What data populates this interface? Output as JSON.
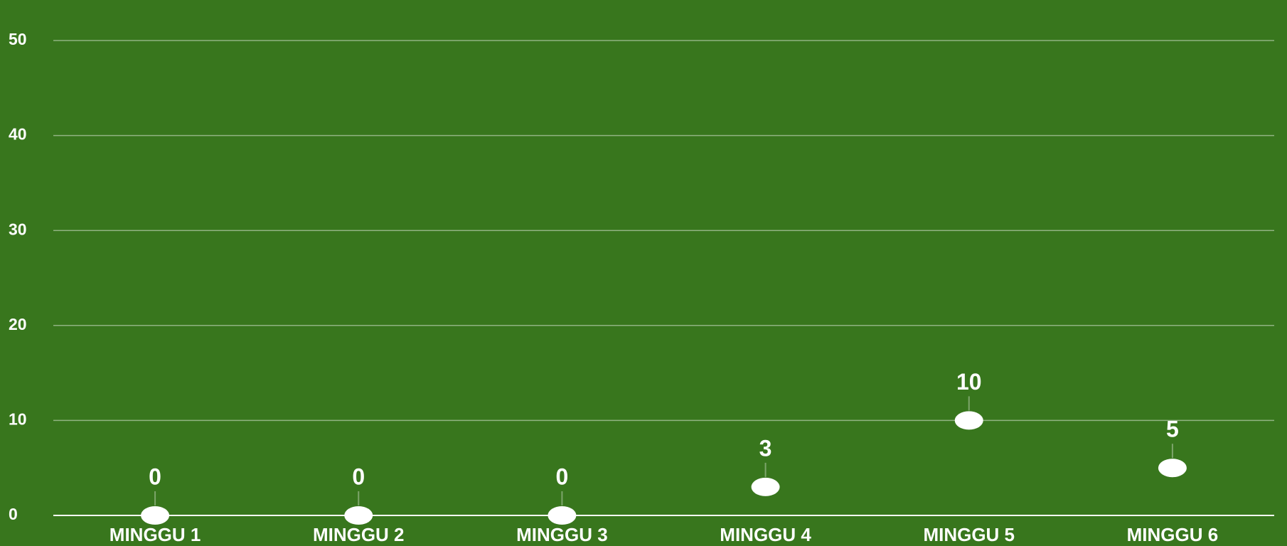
{
  "chart_data": {
    "type": "scatter",
    "categories": [
      "MINGGU 1",
      "MINGGU 2",
      "MINGGU 3",
      "MINGGU 4",
      "MINGGU 5",
      "MINGGU 6"
    ],
    "values": [
      0,
      0,
      0,
      3,
      10,
      5
    ],
    "color": "#ffffff",
    "ylim": [
      0,
      50
    ],
    "yticks": [
      0,
      10,
      20,
      30,
      40,
      50
    ],
    "grid": true
  }
}
